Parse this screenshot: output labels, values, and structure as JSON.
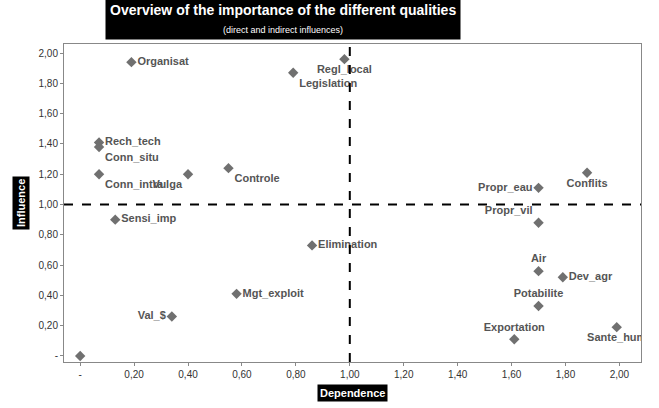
{
  "chart_data": {
    "type": "scatter",
    "title": "Overview of the importance of the different qualities",
    "subtitle": "(direct and indirect influences)",
    "x_label": "Dependence",
    "y_label": "Influence",
    "labels": [
      "Organisat",
      "Regl_local",
      "Legislation",
      "Rech_tech",
      "Conn_situ",
      "Conn_intra",
      "Vulga",
      "Controle",
      "Sensi_imp",
      "Elimination",
      "Mgt_exploit",
      "Val_$",
      "Propr_eau",
      "Conflits",
      "Propr_vil",
      "Air",
      "Dev_agr",
      "Potabilite",
      "Exportation",
      "Sante_hum",
      null
    ],
    "x": [
      0.19,
      0.98,
      0.79,
      0.07,
      0.07,
      0.07,
      0.4,
      0.55,
      0.13,
      0.86,
      0.58,
      0.34,
      1.7,
      1.88,
      1.7,
      1.7,
      1.79,
      1.7,
      1.61,
      1.99,
      0.0
    ],
    "values": [
      1.94,
      1.96,
      1.87,
      1.41,
      1.38,
      1.2,
      1.2,
      1.24,
      0.9,
      0.73,
      0.41,
      0.26,
      1.11,
      1.21,
      0.88,
      0.56,
      0.52,
      0.33,
      0.11,
      0.19,
      0.0
    ],
    "color": "#707070",
    "marker": "diamond",
    "x_reference": 1.0,
    "y_reference": 1.0,
    "xlim": [
      -0.06,
      2.08
    ],
    "ylim": [
      -0.04,
      2.06
    ],
    "xticks": [
      {
        "value": 0,
        "label": "-"
      },
      {
        "value": 0.2,
        "label": "0,20"
      },
      {
        "value": 0.4,
        "label": "0,40"
      },
      {
        "value": 0.6,
        "label": "0,60"
      },
      {
        "value": 0.8,
        "label": "0,80"
      },
      {
        "value": 1.0,
        "label": "1,00"
      },
      {
        "value": 1.2,
        "label": "1,20"
      },
      {
        "value": 1.4,
        "label": "1,40"
      },
      {
        "value": 1.6,
        "label": "1,60"
      },
      {
        "value": 1.8,
        "label": "1,80"
      },
      {
        "value": 2.0,
        "label": "2,00"
      }
    ],
    "yticks": [
      {
        "value": 0,
        "label": "-"
      },
      {
        "value": 0.2,
        "label": "0,20"
      },
      {
        "value": 0.4,
        "label": "0,40"
      },
      {
        "value": 0.6,
        "label": "0,60"
      },
      {
        "value": 0.8,
        "label": "0,80"
      },
      {
        "value": 1.0,
        "label": "1,00"
      },
      {
        "value": 1.2,
        "label": "1,20"
      },
      {
        "value": 1.4,
        "label": "1,40"
      },
      {
        "value": 1.6,
        "label": "1,60"
      },
      {
        "value": 1.8,
        "label": "1,80"
      },
      {
        "value": 2.0,
        "label": "2,00"
      }
    ],
    "grid": false
  }
}
